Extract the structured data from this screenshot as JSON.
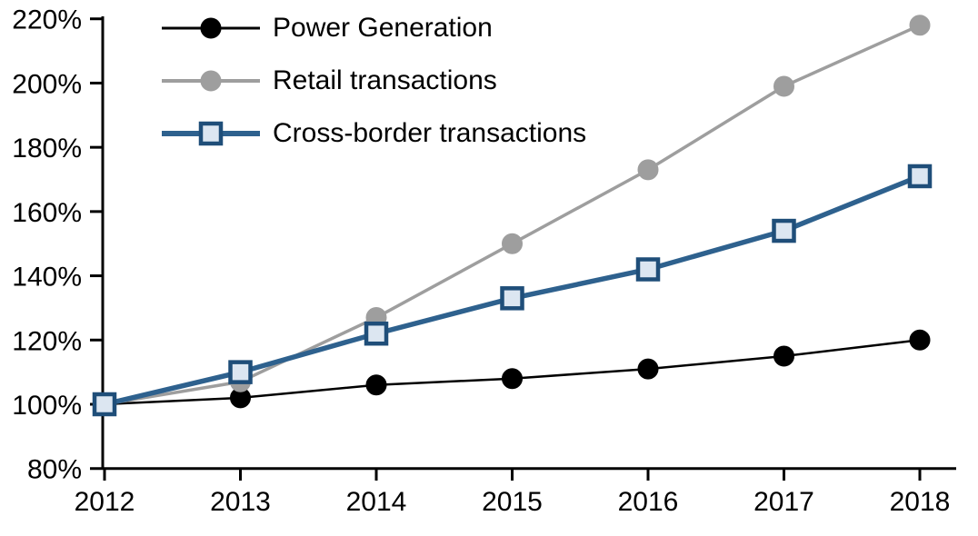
{
  "chart_data": {
    "type": "line",
    "x": [
      "2012",
      "2013",
      "2014",
      "2015",
      "2016",
      "2017",
      "2018"
    ],
    "series": [
      {
        "name": "Power Generation",
        "values": [
          100,
          102,
          106,
          108,
          111,
          115,
          120
        ],
        "color": "#000000",
        "line_width": 2.5,
        "marker": "circle",
        "marker_fill": "#000000",
        "marker_stroke": "#000000"
      },
      {
        "name": "Retail transactions",
        "values": [
          100,
          107,
          127,
          150,
          173,
          199,
          218
        ],
        "color": "#9e9e9e",
        "line_width": 3.5,
        "marker": "circle",
        "marker_fill": "#9e9e9e",
        "marker_stroke": "#9e9e9e"
      },
      {
        "name": "Cross-border transactions",
        "values": [
          100,
          110,
          122,
          133,
          142,
          154,
          171
        ],
        "color": "#2e618e",
        "line_width": 5.5,
        "marker": "square",
        "marker_fill": "#dce6f1",
        "marker_stroke": "#1f4e79"
      }
    ],
    "title": "",
    "xlabel": "",
    "ylabel": "",
    "ylim": [
      80,
      220
    ],
    "ytick_step": 20,
    "ytick_suffix": "%",
    "grid": false,
    "legend_position": "top-left",
    "axis_color": "#000000"
  }
}
